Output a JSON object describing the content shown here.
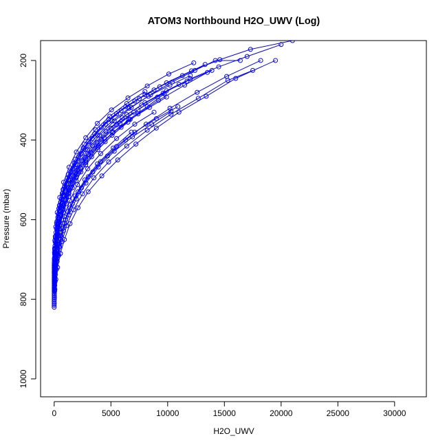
{
  "chart_data": {
    "type": "scatter",
    "title": "ATOM3 Northbound H2O_UWV (Log)",
    "xlabel": "H2O_UWV",
    "ylabel": "Pressure (mbar)",
    "xlim": [
      -1200,
      32800
    ],
    "ylim": [
      1045,
      150
    ],
    "y_reversed": true,
    "x_ticks": [
      0,
      5000,
      10000,
      15000,
      20000,
      25000,
      30000
    ],
    "y_ticks": [
      200,
      400,
      600,
      800,
      1000
    ],
    "x_tick_labels": [
      "0",
      "5000",
      "10000",
      "15000",
      "20000",
      "25000",
      "30000"
    ],
    "y_tick_labels": [
      "200",
      "400",
      "600",
      "800",
      "1000"
    ],
    "grid": false,
    "legend": "none",
    "style": "lines with open circle markers",
    "series_color": "#0000ff",
    "series": [
      {
        "x": [
          0,
          5,
          20,
          60,
          150,
          300,
          550,
          900,
          1400,
          2100,
          3000,
          4200,
          5600,
          7200,
          9000,
          11000,
          13400,
          16000,
          19500
        ],
        "y": [
          820,
          810,
          795,
          775,
          750,
          720,
          685,
          650,
          610,
          570,
          530,
          490,
          450,
          410,
          370,
          330,
          290,
          245,
          200
        ]
      },
      {
        "x": [
          0,
          10,
          35,
          90,
          200,
          400,
          700,
          1100,
          1700,
          2500,
          3500,
          4800,
          6400,
          8200,
          10300,
          12700,
          15300,
          17500
        ],
        "y": [
          815,
          800,
          780,
          755,
          725,
          690,
          655,
          615,
          575,
          535,
          495,
          455,
          415,
          375,
          335,
          295,
          250,
          225
        ]
      },
      {
        "x": [
          0,
          8,
          25,
          70,
          160,
          320,
          600,
          1000,
          1600,
          2400,
          3400,
          4700,
          6300,
          8100,
          10200,
          12600,
          15200,
          18200
        ],
        "y": [
          810,
          795,
          770,
          745,
          715,
          680,
          640,
          600,
          560,
          520,
          480,
          440,
          400,
          360,
          320,
          280,
          240,
          200
        ]
      },
      {
        "x": [
          0,
          15,
          50,
          120,
          260,
          480,
          820,
          1300,
          1950,
          2800,
          3900,
          5300,
          6900,
          8600,
          10300
        ],
        "y": [
          805,
          790,
          765,
          738,
          705,
          668,
          628,
          588,
          548,
          508,
          468,
          428,
          392,
          360,
          328
        ]
      },
      {
        "x": [
          0,
          12,
          40,
          100,
          220,
          420,
          740,
          1200,
          1850,
          2700,
          3800,
          5200,
          6800
        ],
        "y": [
          800,
          785,
          760,
          732,
          700,
          662,
          622,
          580,
          540,
          500,
          460,
          420,
          380
        ]
      },
      {
        "x": [
          0,
          20,
          60,
          140,
          300,
          550,
          900,
          1400,
          2100,
          3000,
          4100,
          5500,
          7100,
          9000,
          10900
        ],
        "y": [
          795,
          778,
          752,
          722,
          688,
          650,
          610,
          570,
          530,
          492,
          454,
          416,
          380,
          346,
          316
        ]
      },
      {
        "x": [
          0,
          6,
          22,
          55,
          130,
          260,
          480,
          820,
          1300,
          1950,
          2800,
          3900,
          5200,
          6600,
          8200,
          9700
        ],
        "y": [
          790,
          772,
          748,
          718,
          684,
          646,
          606,
          566,
          526,
          486,
          450,
          414,
          380,
          348,
          316,
          284
        ]
      },
      {
        "x": [
          0,
          10,
          30,
          80,
          180,
          360,
          640,
          1050,
          1600,
          2350,
          3300,
          4500,
          5900,
          7400,
          9200,
          11500,
          13500
        ],
        "y": [
          785,
          768,
          742,
          712,
          678,
          640,
          600,
          560,
          520,
          480,
          442,
          404,
          368,
          334,
          300,
          262,
          230
        ]
      },
      {
        "x": [
          0,
          18,
          55,
          130,
          280,
          520,
          880,
          1380,
          2050,
          2950,
          4100,
          5500,
          7100,
          8800
        ],
        "y": [
          780,
          762,
          736,
          705,
          670,
          632,
          592,
          552,
          512,
          472,
          434,
          396,
          360,
          330
        ]
      },
      {
        "x": [
          0,
          9,
          28,
          75,
          170,
          340,
          620,
          1020,
          1580,
          2320,
          3250,
          4400,
          5800,
          7400,
          9100,
          11000
        ],
        "y": [
          775,
          758,
          732,
          702,
          668,
          630,
          590,
          550,
          510,
          470,
          432,
          394,
          358,
          324,
          292,
          260
        ]
      },
      {
        "x": [
          0,
          14,
          45,
          110,
          240,
          460,
          800,
          1280,
          1930,
          2780,
          3850,
          5100,
          6500
        ],
        "y": [
          770,
          752,
          726,
          695,
          660,
          622,
          582,
          542,
          502,
          462,
          424,
          388,
          355
        ]
      },
      {
        "x": [
          0,
          7,
          24,
          62,
          145,
          290,
          530,
          890,
          1400,
          2080,
          2950,
          4000,
          5300,
          6800,
          8500,
          10400,
          12400,
          14200,
          16400
        ],
        "y": [
          765,
          748,
          722,
          692,
          658,
          620,
          580,
          540,
          500,
          462,
          424,
          388,
          352,
          318,
          286,
          254,
          225,
          200,
          200
        ]
      },
      {
        "x": [
          0,
          16,
          48,
          115,
          250,
          470,
          810,
          1300,
          1950,
          2800,
          3850,
          5150,
          6700,
          8400,
          9900
        ],
        "y": [
          760,
          742,
          716,
          686,
          652,
          614,
          574,
          534,
          494,
          456,
          418,
          382,
          348,
          318,
          292
        ]
      },
      {
        "x": [
          0,
          11,
          34,
          88,
          195,
          380,
          670,
          1090,
          1660,
          2420,
          3380,
          4560,
          6000,
          7700,
          9600,
          11700,
          13900
        ],
        "y": [
          755,
          738,
          712,
          682,
          648,
          610,
          570,
          530,
          490,
          452,
          414,
          378,
          344,
          312,
          282,
          252,
          225
        ]
      },
      {
        "x": [
          0,
          5,
          18,
          50,
          120,
          250,
          460,
          780,
          1240,
          1860,
          2650,
          3650,
          4900,
          6400,
          8000
        ],
        "y": [
          750,
          732,
          706,
          676,
          642,
          604,
          564,
          524,
          486,
          448,
          410,
          374,
          340,
          308,
          278
        ]
      },
      {
        "x": [
          0,
          13,
          42,
          105,
          230,
          440,
          770,
          1240,
          1880,
          2720,
          3770,
          5000,
          6400,
          8000,
          9900,
          12000,
          14500,
          17000,
          20000
        ],
        "y": [
          745,
          728,
          702,
          672,
          638,
          600,
          560,
          520,
          482,
          444,
          406,
          370,
          336,
          306,
          276,
          246,
          216,
          190,
          160
        ]
      },
      {
        "x": [
          0,
          8,
          26,
          68,
          155,
          310,
          560,
          930,
          1450,
          2150,
          3040,
          4150,
          5500,
          7100,
          8800
        ],
        "y": [
          740,
          722,
          696,
          666,
          632,
          594,
          556,
          518,
          480,
          442,
          404,
          368,
          334,
          302,
          274
        ]
      },
      {
        "x": [
          0,
          19,
          58,
          135,
          285,
          530,
          900,
          1420,
          2120,
          3020,
          4150,
          5500,
          7000
        ],
        "y": [
          735,
          716,
          690,
          660,
          626,
          588,
          550,
          512,
          474,
          436,
          398,
          362,
          330
        ]
      },
      {
        "x": [
          0,
          10,
          32,
          84,
          188,
          370,
          660,
          1080,
          1650,
          2400,
          3350,
          4520,
          5900,
          7500,
          9300,
          11300,
          13300
        ],
        "y": [
          730,
          712,
          686,
          656,
          622,
          586,
          548,
          510,
          472,
          434,
          396,
          360,
          326,
          296,
          266,
          238,
          210
        ]
      },
      {
        "x": [
          0,
          6,
          21,
          56,
          132,
          268,
          490,
          830,
          1310,
          1950,
          2780,
          3800,
          5050,
          6500,
          8200,
          10100,
          12300
        ],
        "y": [
          725,
          708,
          682,
          652,
          618,
          582,
          544,
          506,
          468,
          430,
          394,
          358,
          324,
          294,
          264,
          234,
          206
        ]
      },
      {
        "x": [
          0,
          15,
          46,
          112,
          242,
          458,
          790,
          1270,
          1920,
          2760,
          3820,
          5100,
          6600,
          8300,
          10200,
          12000
        ],
        "y": [
          720,
          702,
          676,
          646,
          612,
          576,
          538,
          500,
          462,
          424,
          388,
          352,
          320,
          290,
          262,
          238
        ]
      },
      {
        "x": [
          0,
          12,
          38,
          96,
          210,
          405,
          715,
          1160,
          1770,
          2560,
          3560,
          4800,
          6300,
          8000,
          9900,
          12100,
          14600,
          17300,
          21000
        ],
        "y": [
          715,
          698,
          672,
          642,
          608,
          572,
          534,
          496,
          458,
          420,
          384,
          348,
          316,
          286,
          256,
          226,
          198,
          172,
          150
        ]
      }
    ]
  }
}
